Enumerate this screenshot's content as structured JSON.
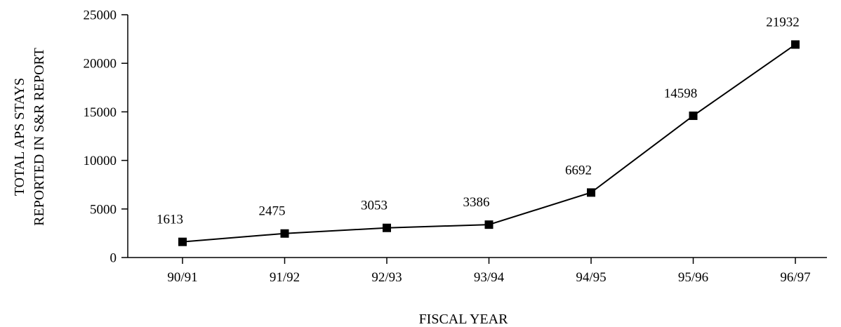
{
  "chart_data": {
    "type": "line",
    "title": "",
    "xlabel": "FISCAL YEAR",
    "ylabel_lines": [
      "TOTAL APS STAYS",
      "REPORTED IN S&R REPORT"
    ],
    "categories": [
      "90/91",
      "91/92",
      "92/93",
      "93/94",
      "94/95",
      "95/96",
      "96/97"
    ],
    "series": [
      {
        "values": [
          1613,
          2475,
          3053,
          3386,
          6692,
          14598,
          21932
        ],
        "data_labels": [
          "1613",
          "2475",
          "3053",
          "3386",
          "6692",
          "14598",
          "21932"
        ],
        "color": "#000000",
        "marker": "square"
      }
    ],
    "ylim": [
      0,
      25000
    ],
    "yticks": [
      "0",
      "5000",
      "10000",
      "15000",
      "20000",
      "25000"
    ],
    "grid": false,
    "legend": "none"
  }
}
